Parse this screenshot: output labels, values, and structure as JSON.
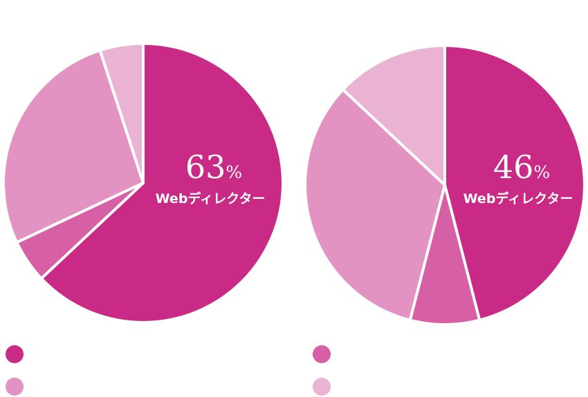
{
  "chart_data": [
    {
      "type": "pie",
      "slices": [
        {
          "value": 63,
          "color": "#c92a85"
        },
        {
          "value": 5,
          "color": "#d65fa6"
        },
        {
          "value": 27,
          "color": "#e393c1"
        },
        {
          "value": 5,
          "color": "#ebb3d3"
        }
      ],
      "highlight": {
        "value": "63",
        "unit": "%",
        "label": "Webディレクター"
      },
      "legend": [
        {
          "label": "",
          "color": "#c92a85"
        },
        {
          "label": "",
          "color": "#e393c1"
        }
      ]
    },
    {
      "type": "pie",
      "slices": [
        {
          "value": 46,
          "color": "#c92a85"
        },
        {
          "value": 8,
          "color": "#d65fa6"
        },
        {
          "value": 33,
          "color": "#e393c1"
        },
        {
          "value": 13,
          "color": "#ebb3d3"
        }
      ],
      "highlight": {
        "value": "46",
        "unit": "%",
        "label": "Webディレクター"
      },
      "legend": [
        {
          "label": "",
          "color": "#d65fa6"
        },
        {
          "label": "",
          "color": "#ebb3d3"
        }
      ]
    }
  ]
}
